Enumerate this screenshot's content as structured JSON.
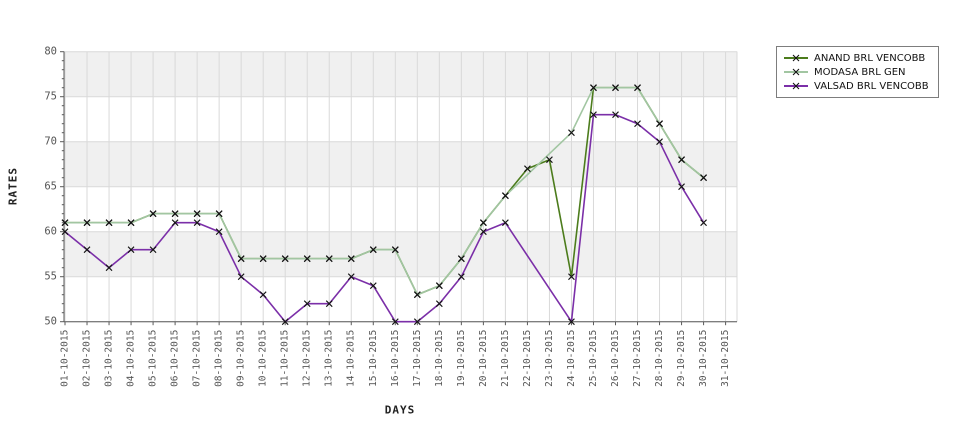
{
  "chart_data": {
    "type": "line",
    "title": "",
    "xlabel": "DAYS",
    "ylabel": "RATES",
    "ylim": [
      50,
      80
    ],
    "y_ticks": [
      50,
      55,
      60,
      65,
      70,
      75,
      80
    ],
    "y_minor_step": 1,
    "grid": true,
    "legend_position": "outside-top-right",
    "categories": [
      "01-10-2015",
      "02-10-2015",
      "03-10-2015",
      "04-10-2015",
      "05-10-2015",
      "06-10-2015",
      "07-10-2015",
      "08-10-2015",
      "09-10-2015",
      "10-10-2015",
      "11-10-2015",
      "12-10-2015",
      "13-10-2015",
      "14-10-2015",
      "15-10-2015",
      "16-10-2015",
      "17-10-2015",
      "18-10-2015",
      "19-10-2015",
      "20-10-2015",
      "21-10-2015",
      "22-10-2015",
      "23-10-2015",
      "24-10-2015",
      "25-10-2015",
      "26-10-2015",
      "27-10-2015",
      "28-10-2015",
      "29-10-2015",
      "30-10-2015",
      "31-10-2015"
    ],
    "series": [
      {
        "name": "ANAND BRL VENCOBB",
        "color": "#4c7c1c",
        "values": [
          61,
          61,
          61,
          61,
          62,
          62,
          62,
          62,
          57,
          57,
          57,
          57,
          57,
          57,
          58,
          58,
          53,
          54,
          57,
          61,
          64,
          67,
          68,
          55,
          76,
          76,
          76,
          72,
          68,
          66,
          null
        ]
      },
      {
        "name": "MODASA BRL GEN",
        "color": "#a2c6a2",
        "values": [
          61,
          61,
          61,
          61,
          62,
          62,
          62,
          62,
          57,
          57,
          57,
          57,
          57,
          57,
          58,
          58,
          53,
          54,
          57,
          61,
          64,
          null,
          null,
          71,
          76,
          76,
          76,
          72,
          68,
          66,
          null
        ]
      },
      {
        "name": "VALSAD BRL VENCOBB",
        "color": "#7b2fa8",
        "values": [
          60,
          58,
          56,
          58,
          58,
          61,
          61,
          60,
          55,
          53,
          50,
          52,
          52,
          55,
          54,
          50,
          50,
          52,
          55,
          60,
          61,
          null,
          null,
          50,
          73,
          73,
          72,
          70,
          65,
          61,
          null
        ]
      }
    ],
    "marker": {
      "shape": "x",
      "color": "#141414"
    }
  },
  "style": {
    "background": "#ffffff",
    "band_gray": "#f0f0f0",
    "grid_color": "#d9d9d9",
    "axis_color": "#5a5a5a",
    "tick_label_color": "#555555",
    "axis_title_color": "#222222",
    "legend_border_color": "#7d7d7d"
  }
}
